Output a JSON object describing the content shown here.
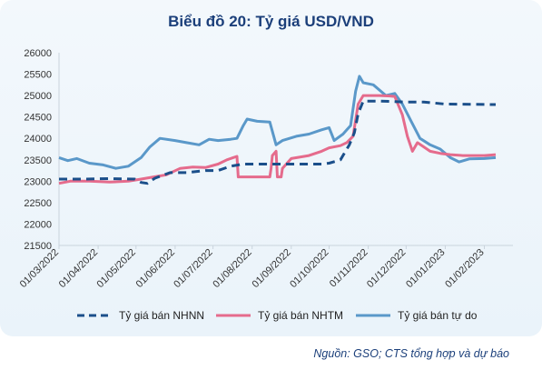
{
  "chart_data": {
    "type": "line",
    "title": "Biểu đồ 20: Tỷ giá USD/VND",
    "xlabel": "",
    "ylabel": "",
    "ylim": [
      21500,
      26000
    ],
    "y_ticks": [
      21500,
      22000,
      22500,
      23000,
      23500,
      24000,
      24500,
      25000,
      25500,
      26000
    ],
    "x_ticks": [
      "01/03/2022",
      "01/04/2022",
      "01/05/2022",
      "01/06/2022",
      "01/07/2022",
      "01/08/2022",
      "01/09/2022",
      "01/10/2022",
      "01/11/2022",
      "01/12/2022",
      "01/01/2023",
      "01/02/2023"
    ],
    "xlim": [
      "2022-03-01",
      "2023-02-15"
    ],
    "grid": false,
    "legend_position": "bottom",
    "series": [
      {
        "name": "Tỷ giá bán NHNN",
        "color": "#1b4f8a",
        "style": "dashed",
        "points": [
          [
            "2022-03-01",
            23050
          ],
          [
            "2022-03-20",
            23050
          ],
          [
            "2022-04-10",
            23060
          ],
          [
            "2022-04-30",
            23050
          ],
          [
            "2022-05-05",
            22970
          ],
          [
            "2022-05-10",
            22950
          ],
          [
            "2022-05-16",
            23070
          ],
          [
            "2022-05-28",
            23200
          ],
          [
            "2022-06-10",
            23200
          ],
          [
            "2022-06-25",
            23250
          ],
          [
            "2022-07-05",
            23250
          ],
          [
            "2022-07-15",
            23350
          ],
          [
            "2022-07-25",
            23400
          ],
          [
            "2022-08-10",
            23400
          ],
          [
            "2022-08-28",
            23400
          ],
          [
            "2022-09-15",
            23400
          ],
          [
            "2022-09-25",
            23400
          ],
          [
            "2022-10-01",
            23420
          ],
          [
            "2022-10-10",
            23500
          ],
          [
            "2022-10-17",
            23850
          ],
          [
            "2022-10-21",
            24130
          ],
          [
            "2022-10-24",
            24580
          ],
          [
            "2022-10-28",
            24870
          ],
          [
            "2022-11-10",
            24870
          ],
          [
            "2022-12-01",
            24850
          ],
          [
            "2022-12-15",
            24850
          ],
          [
            "2023-01-01",
            24800
          ],
          [
            "2023-02-10",
            24790
          ]
        ]
      },
      {
        "name": "Tỷ giá bán NHTM",
        "color": "#e56b8c",
        "style": "solid",
        "points": [
          [
            "2022-03-01",
            22950
          ],
          [
            "2022-03-10",
            23000
          ],
          [
            "2022-03-25",
            23000
          ],
          [
            "2022-04-10",
            22980
          ],
          [
            "2022-04-25",
            23000
          ],
          [
            "2022-05-05",
            23050
          ],
          [
            "2022-05-15",
            23100
          ],
          [
            "2022-05-25",
            23150
          ],
          [
            "2022-06-05",
            23300
          ],
          [
            "2022-06-15",
            23330
          ],
          [
            "2022-06-25",
            23320
          ],
          [
            "2022-07-05",
            23400
          ],
          [
            "2022-07-12",
            23500
          ],
          [
            "2022-07-20",
            23580
          ],
          [
            "2022-07-21",
            23100
          ],
          [
            "2022-08-15",
            23100
          ],
          [
            "2022-08-16",
            23300
          ],
          [
            "2022-08-17",
            23600
          ],
          [
            "2022-08-20",
            23700
          ],
          [
            "2022-08-21",
            23100
          ],
          [
            "2022-08-24",
            23100
          ],
          [
            "2022-08-25",
            23300
          ],
          [
            "2022-09-01",
            23530
          ],
          [
            "2022-09-15",
            23600
          ],
          [
            "2022-09-25",
            23700
          ],
          [
            "2022-10-01",
            23780
          ],
          [
            "2022-10-10",
            23830
          ],
          [
            "2022-10-15",
            23900
          ],
          [
            "2022-10-20",
            24050
          ],
          [
            "2022-10-24",
            24800
          ],
          [
            "2022-10-28",
            25000
          ],
          [
            "2022-11-10",
            25000
          ],
          [
            "2022-11-18",
            24990
          ],
          [
            "2022-11-22",
            24980
          ],
          [
            "2022-11-28",
            24550
          ],
          [
            "2022-12-02",
            24050
          ],
          [
            "2022-12-06",
            23700
          ],
          [
            "2022-12-10",
            23900
          ],
          [
            "2022-12-15",
            23800
          ],
          [
            "2022-12-20",
            23700
          ],
          [
            "2022-12-28",
            23650
          ],
          [
            "2023-01-05",
            23620
          ],
          [
            "2023-01-15",
            23600
          ],
          [
            "2023-02-01",
            23600
          ],
          [
            "2023-02-10",
            23620
          ]
        ]
      },
      {
        "name": "Tỷ giá bán tự do",
        "color": "#5a98c9",
        "style": "solid",
        "points": [
          [
            "2022-03-01",
            23550
          ],
          [
            "2022-03-08",
            23480
          ],
          [
            "2022-03-15",
            23530
          ],
          [
            "2022-03-25",
            23420
          ],
          [
            "2022-04-05",
            23380
          ],
          [
            "2022-04-15",
            23300
          ],
          [
            "2022-04-25",
            23350
          ],
          [
            "2022-05-05",
            23550
          ],
          [
            "2022-05-12",
            23800
          ],
          [
            "2022-05-20",
            24000
          ],
          [
            "2022-06-01",
            23950
          ],
          [
            "2022-06-10",
            23900
          ],
          [
            "2022-06-20",
            23850
          ],
          [
            "2022-06-28",
            23980
          ],
          [
            "2022-07-05",
            23950
          ],
          [
            "2022-07-15",
            23980
          ],
          [
            "2022-07-20",
            24000
          ],
          [
            "2022-07-25",
            24300
          ],
          [
            "2022-07-28",
            24450
          ],
          [
            "2022-08-05",
            24400
          ],
          [
            "2022-08-15",
            24380
          ],
          [
            "2022-08-20",
            23850
          ],
          [
            "2022-08-25",
            23950
          ],
          [
            "2022-09-05",
            24050
          ],
          [
            "2022-09-15",
            24100
          ],
          [
            "2022-09-25",
            24200
          ],
          [
            "2022-10-01",
            24250
          ],
          [
            "2022-10-05",
            23950
          ],
          [
            "2022-10-12",
            24100
          ],
          [
            "2022-10-18",
            24300
          ],
          [
            "2022-10-22",
            25100
          ],
          [
            "2022-10-25",
            25450
          ],
          [
            "2022-10-28",
            25300
          ],
          [
            "2022-11-05",
            25250
          ],
          [
            "2022-11-15",
            25000
          ],
          [
            "2022-11-22",
            25050
          ],
          [
            "2022-11-28",
            24800
          ],
          [
            "2022-12-05",
            24400
          ],
          [
            "2022-12-12",
            24000
          ],
          [
            "2022-12-20",
            23850
          ],
          [
            "2022-12-28",
            23750
          ],
          [
            "2023-01-05",
            23550
          ],
          [
            "2023-01-12",
            23450
          ],
          [
            "2023-01-20",
            23520
          ],
          [
            "2023-02-01",
            23530
          ],
          [
            "2023-02-10",
            23550
          ]
        ]
      }
    ]
  },
  "legend": [
    {
      "label": "Tỷ giá bán NHNN"
    },
    {
      "label": "Tỷ giá bán NHTM"
    },
    {
      "label": "Tỷ giá bán tự do"
    }
  ],
  "source": "Nguồn: GSO; CTS tổng hợp và dự báo"
}
